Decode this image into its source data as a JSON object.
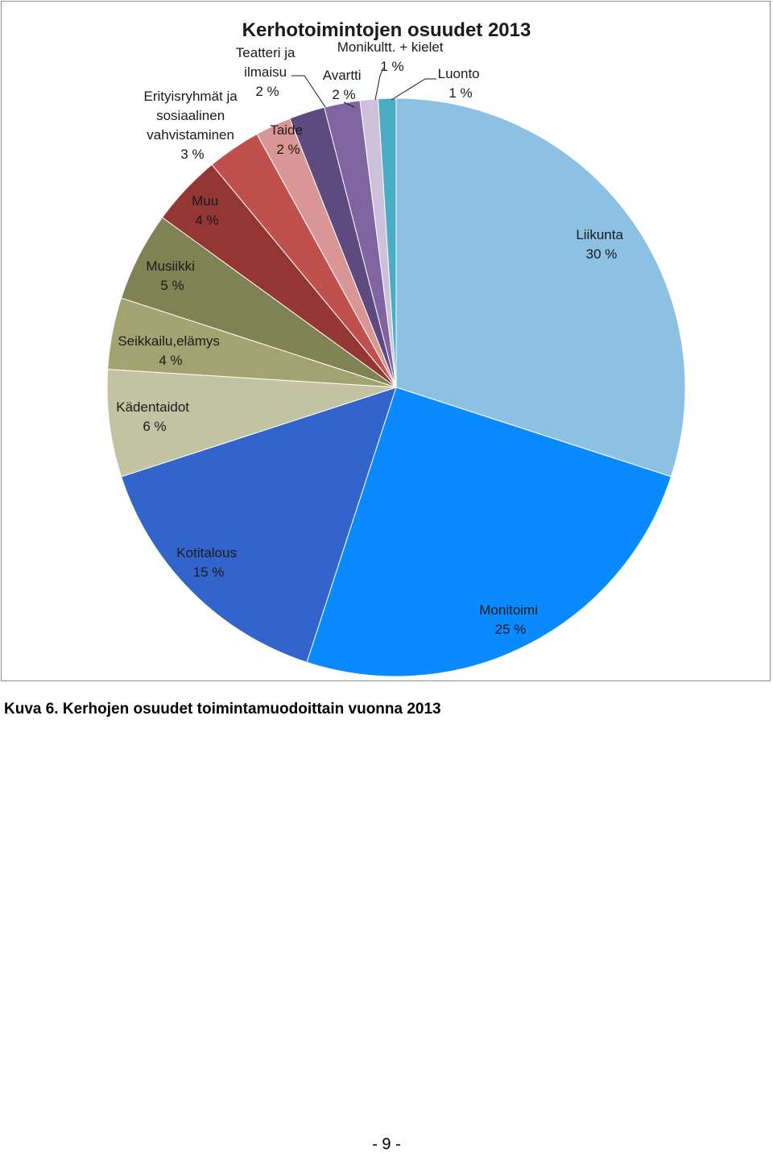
{
  "chart_data": {
    "type": "pie",
    "title": "Kerhotoimintojen osuudet 2013",
    "slices": [
      {
        "name": "Liikunta",
        "value": 30,
        "label": "30 %",
        "color": "#8cc1e4"
      },
      {
        "name": "Monitoimi",
        "value": 25,
        "label": "25 %",
        "color": "#0a8aff"
      },
      {
        "name": "Kotitalous",
        "value": 15,
        "label": "15 %",
        "color": "#3364cc"
      },
      {
        "name": "Kädentaidot",
        "value": 6,
        "label": "6 %",
        "color": "#c2c3a3"
      },
      {
        "name": "Seikkailu,elämys",
        "value": 4,
        "label": "4 %",
        "color": "#a3a371"
      },
      {
        "name": "Musiikki",
        "value": 5,
        "label": "5 %",
        "color": "#7f8252"
      },
      {
        "name": "Muu",
        "value": 4,
        "label": "4 %",
        "color": "#943734"
      },
      {
        "name": "Erityisryhmät ja sosiaalinen vahvistaminen",
        "value": 3,
        "label": "3 %",
        "color": "#c0504d"
      },
      {
        "name": "Taide",
        "value": 2,
        "label": "2 %",
        "color": "#da9694"
      },
      {
        "name": "Teatteri ja ilmaisu",
        "value": 2,
        "label": "2 %",
        "color": "#5e4a7e"
      },
      {
        "name": "Avartti",
        "value": 2,
        "label": "2 %",
        "color": "#8064a2"
      },
      {
        "name": "Monikultt. + kielet",
        "value": 1,
        "label": "1 %",
        "color": "#ccc0da"
      },
      {
        "name": "Luonto",
        "value": 1,
        "label": "1 %",
        "color": "#4bacc6"
      }
    ],
    "legend": "none"
  },
  "labels": {
    "liikunta": [
      "Liikunta",
      "30 %"
    ],
    "monitoimi": [
      "Monitoimi",
      "25 %"
    ],
    "kotitalous": [
      "Kotitalous",
      "15 %"
    ],
    "kadentaidot": [
      "Kädentaidot",
      "6 %"
    ],
    "seikkailu": [
      "Seikkailu,elämys",
      "4 %"
    ],
    "musiikki": [
      "Musiikki",
      "5 %"
    ],
    "muu": [
      "Muu",
      "4 %"
    ],
    "erityis": [
      "Erityisryhmät ja",
      "sosiaalinen",
      "vahvistaminen",
      "3 %"
    ],
    "taide": [
      "Taide",
      "2 %"
    ],
    "teatteri": [
      "Teatteri ja",
      "ilmaisu",
      "2 %"
    ],
    "avartti": [
      "Avartti",
      "2 %"
    ],
    "monikultt": [
      "Monikultt. + kielet",
      "1 %"
    ],
    "luonto": [
      "Luonto",
      "1 %"
    ]
  },
  "caption": "Kuva 6. Kerhojen osuudet toimintamuodoittain vuonna 2013",
  "page_number": "- 9 -"
}
